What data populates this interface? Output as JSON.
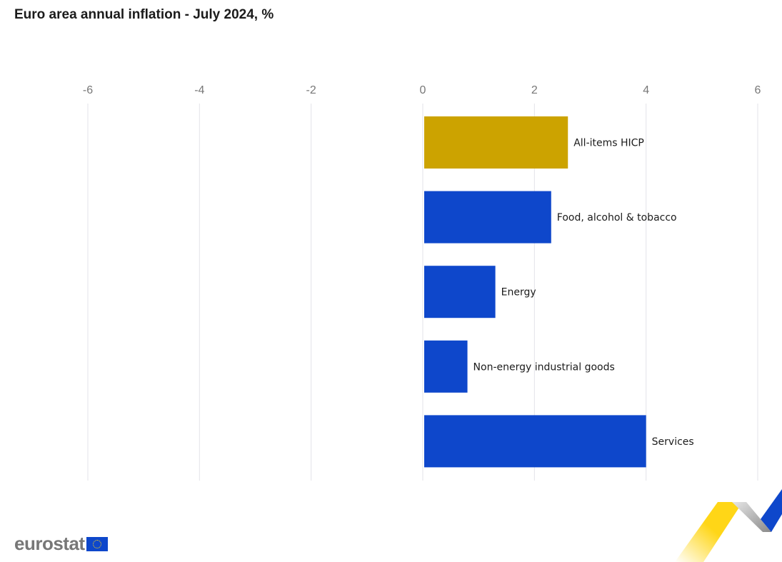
{
  "chart_data": {
    "type": "bar",
    "orientation": "horizontal",
    "title": "Euro area annual inflation - July 2024, %",
    "categories": [
      "All-items HICP",
      "Food, alcohol & tobacco",
      "Energy",
      "Non-energy industrial goods",
      "Services"
    ],
    "values": [
      2.6,
      2.3,
      1.3,
      0.8,
      4.0
    ],
    "colors": [
      "#cca300",
      "#0e47cb",
      "#0e47cb",
      "#0e47cb",
      "#0e47cb"
    ],
    "xlim": [
      -6,
      6
    ],
    "xticks": [
      "-6",
      "-4",
      "-2",
      "0",
      "2",
      "4",
      "6"
    ],
    "tick_values": [
      -6,
      -4,
      -2,
      0,
      2,
      4,
      6
    ],
    "grid": true,
    "axis_position": "top"
  },
  "branding": {
    "logo_text": "eurostat"
  }
}
